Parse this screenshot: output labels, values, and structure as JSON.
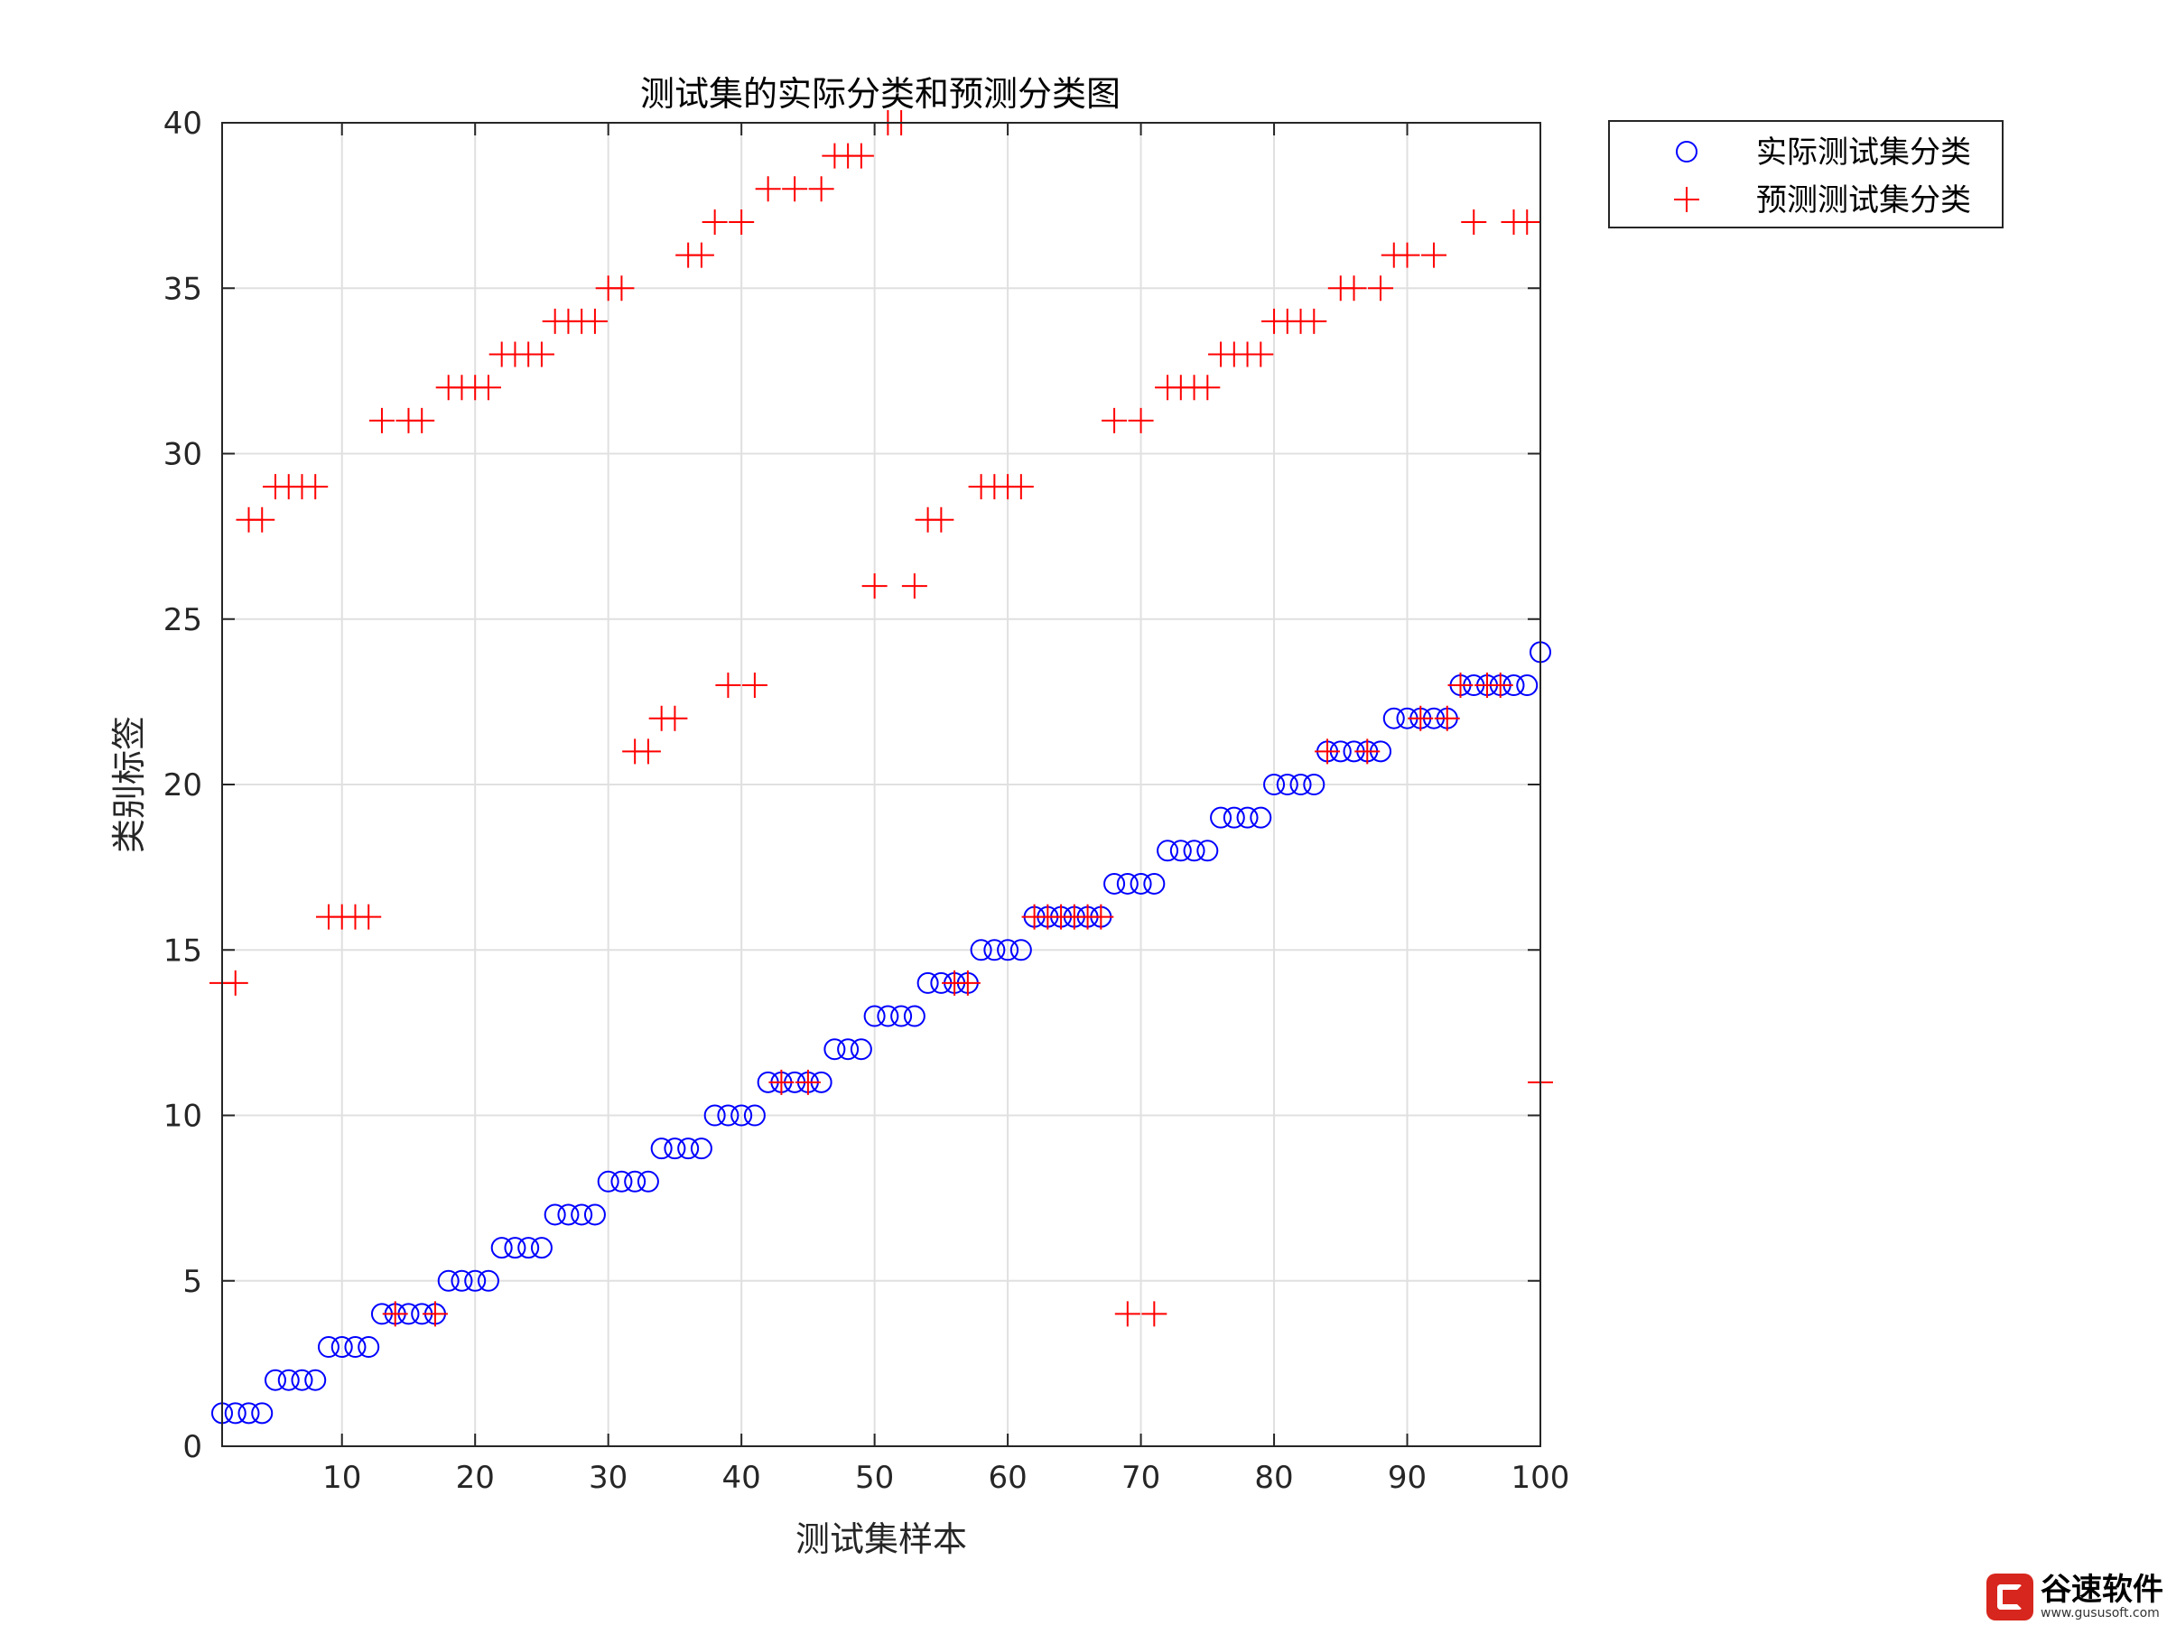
{
  "chart_data": {
    "type": "scatter",
    "title": "测试集的实际分类和预测分类图",
    "xlabel": "测试集样本",
    "ylabel": "类别标签",
    "xlim": [
      1,
      100
    ],
    "ylim": [
      0,
      40
    ],
    "x_ticks": [
      10,
      20,
      30,
      40,
      50,
      60,
      70,
      80,
      90,
      100
    ],
    "y_ticks": [
      0,
      5,
      10,
      15,
      20,
      25,
      30,
      35,
      40
    ],
    "grid": true,
    "legend_position": "outside-top-right",
    "x": [
      1,
      2,
      3,
      4,
      5,
      6,
      7,
      8,
      9,
      10,
      11,
      12,
      13,
      14,
      15,
      16,
      17,
      18,
      19,
      20,
      21,
      22,
      23,
      24,
      25,
      26,
      27,
      28,
      29,
      30,
      31,
      32,
      33,
      34,
      35,
      36,
      37,
      38,
      39,
      40,
      41,
      42,
      43,
      44,
      45,
      46,
      47,
      48,
      49,
      50,
      51,
      52,
      53,
      54,
      55,
      56,
      57,
      58,
      59,
      60,
      61,
      62,
      63,
      64,
      65,
      66,
      67,
      68,
      69,
      70,
      71,
      72,
      73,
      74,
      75,
      76,
      77,
      78,
      79,
      80,
      81,
      82,
      83,
      84,
      85,
      86,
      87,
      88,
      89,
      90,
      91,
      92,
      93,
      94,
      95,
      96,
      97,
      98,
      99,
      100
    ],
    "series": [
      {
        "name": "实际测试集分类",
        "marker": "circle",
        "color": "#0000ff",
        "values": [
          1,
          1,
          1,
          1,
          2,
          2,
          2,
          2,
          3,
          3,
          3,
          3,
          4,
          4,
          4,
          4,
          4,
          5,
          5,
          5,
          5,
          6,
          6,
          6,
          6,
          7,
          7,
          7,
          7,
          8,
          8,
          8,
          8,
          9,
          9,
          9,
          9,
          10,
          10,
          10,
          10,
          11,
          11,
          11,
          11,
          11,
          12,
          12,
          12,
          13,
          13,
          13,
          13,
          14,
          14,
          14,
          14,
          15,
          15,
          15,
          15,
          16,
          16,
          16,
          16,
          16,
          16,
          17,
          17,
          17,
          17,
          18,
          18,
          18,
          18,
          19,
          19,
          19,
          19,
          20,
          20,
          20,
          20,
          21,
          21,
          21,
          21,
          21,
          22,
          22,
          22,
          22,
          22,
          23,
          23,
          23,
          23,
          23,
          23,
          24
        ]
      },
      {
        "name": "预测测试集分类",
        "marker": "plus",
        "color": "#ff0000",
        "values": [
          14,
          14,
          28,
          28,
          29,
          29,
          29,
          29,
          16,
          16,
          16,
          16,
          31,
          4,
          31,
          31,
          4,
          32,
          32,
          32,
          32,
          33,
          33,
          33,
          33,
          34,
          34,
          34,
          34,
          35,
          35,
          21,
          21,
          22,
          22,
          36,
          36,
          37,
          23,
          37,
          23,
          38,
          11,
          38,
          11,
          38,
          39,
          39,
          39,
          26,
          40,
          40,
          26,
          28,
          28,
          14,
          14,
          29,
          29,
          29,
          29,
          16,
          16,
          16,
          16,
          16,
          16,
          31,
          4,
          31,
          4,
          32,
          32,
          32,
          32,
          33,
          33,
          33,
          33,
          34,
          34,
          34,
          34,
          21,
          35,
          35,
          21,
          35,
          36,
          36,
          22,
          36,
          22,
          23,
          37,
          23,
          23,
          37,
          37,
          11
        ]
      }
    ]
  },
  "watermark": {
    "brand_color": "#d7261d",
    "name": "谷速软件",
    "url": "www.gususoft.com"
  }
}
